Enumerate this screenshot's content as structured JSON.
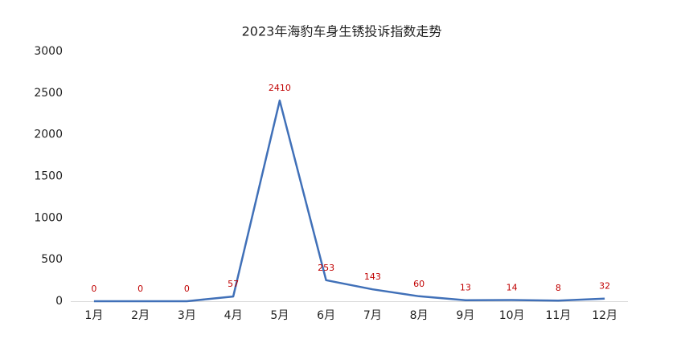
{
  "chart_data": {
    "type": "line",
    "title": "2023年海豹车身生锈投诉指数走势",
    "categories": [
      "1月",
      "2月",
      "3月",
      "4月",
      "5月",
      "6月",
      "7月",
      "8月",
      "9月",
      "10月",
      "11月",
      "12月"
    ],
    "values": [
      0,
      0,
      0,
      57,
      2410,
      253,
      143,
      60,
      13,
      14,
      8,
      32
    ],
    "color": "#4070b8",
    "label_color": "#c00000",
    "ylim": [
      0,
      3000
    ],
    "yticks": [
      0,
      500,
      1000,
      1500,
      2000,
      2500,
      3000
    ],
    "grid": false
  }
}
